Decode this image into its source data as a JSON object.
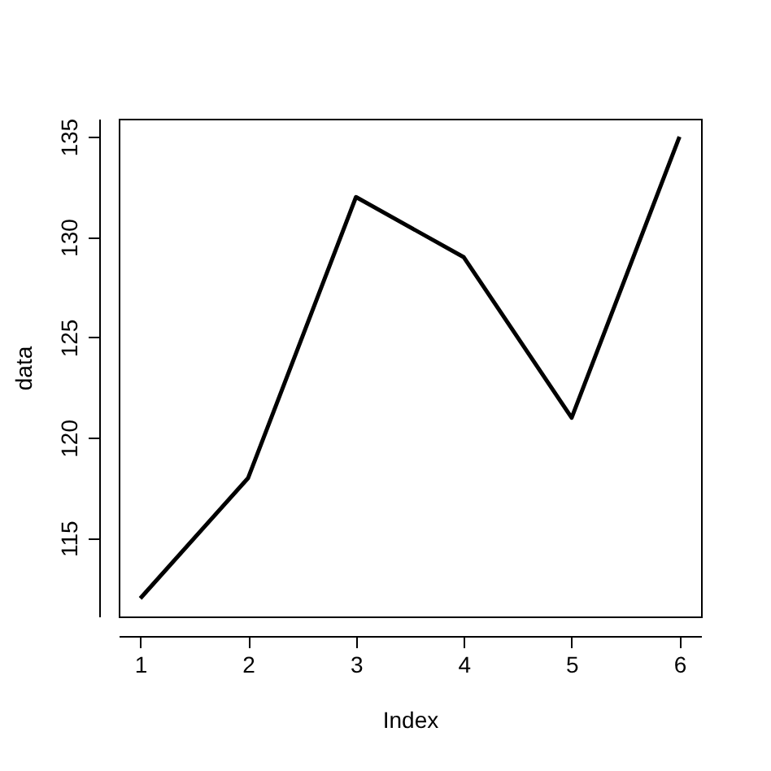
{
  "chart_data": {
    "type": "line",
    "xlabel": "Index",
    "ylabel": "data",
    "x": [
      1,
      2,
      3,
      4,
      5,
      6
    ],
    "series": [
      {
        "color": "#000000",
        "values": [
          112,
          118,
          132,
          129,
          121,
          135
        ]
      }
    ],
    "xlim": [
      0.8,
      6.2
    ],
    "ylim": [
      111.1,
      135.9
    ],
    "xticks": [
      1,
      2,
      3,
      4,
      5,
      6
    ],
    "yticks": [
      115,
      120,
      125,
      130,
      135
    ],
    "grid": false,
    "marker": "none",
    "line_style": "solid"
  }
}
